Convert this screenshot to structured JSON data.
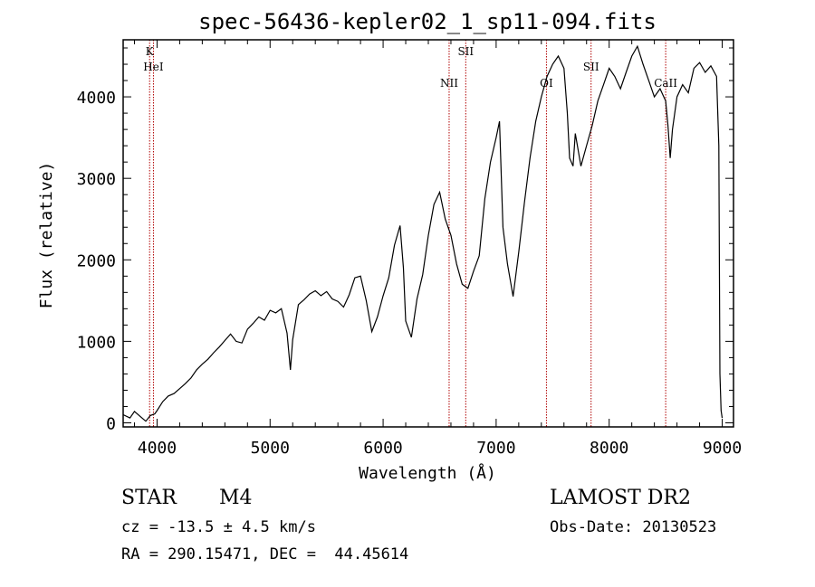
{
  "chart_data": {
    "type": "line",
    "title": "spec-56436-kepler02_1_sp11-094.fits",
    "xlabel": "Wavelength (Å)",
    "ylabel": "Flux (relative)",
    "xlim": [
      3700,
      9100
    ],
    "ylim": [
      -50,
      4700
    ],
    "xticks": [
      4000,
      5000,
      6000,
      7000,
      8000,
      9000
    ],
    "yticks": [
      0,
      1000,
      2000,
      3000,
      4000
    ],
    "grid": false,
    "series": [
      {
        "x": [
          3700,
          3760,
          3800,
          3850,
          3900,
          3940,
          3980,
          4000,
          4050,
          4100,
          4150,
          4200,
          4250,
          4300,
          4350,
          4400,
          4450,
          4500,
          4550,
          4600,
          4650,
          4700,
          4750,
          4800,
          4850,
          4900,
          4950,
          5000,
          5050,
          5100,
          5150,
          5180,
          5200,
          5250,
          5300,
          5350,
          5400,
          5450,
          5500,
          5550,
          5600,
          5650,
          5700,
          5750,
          5800,
          5850,
          5900,
          5950,
          6000,
          6050,
          6100,
          6150,
          6180,
          6200,
          6250,
          6300,
          6350,
          6400,
          6450,
          6500,
          6550,
          6600,
          6650,
          6700,
          6750,
          6800,
          6850,
          6900,
          6950,
          7000,
          7030,
          7060,
          7100,
          7150,
          7200,
          7250,
          7300,
          7350,
          7400,
          7450,
          7500,
          7550,
          7600,
          7630,
          7650,
          7680,
          7700,
          7750,
          7800,
          7850,
          7900,
          7950,
          8000,
          8050,
          8100,
          8150,
          8200,
          8250,
          8300,
          8350,
          8400,
          8450,
          8500,
          8520,
          8540,
          8560,
          8600,
          8650,
          8700,
          8750,
          8800,
          8850,
          8900,
          8950,
          8970,
          8980,
          8990,
          9000
        ],
        "y": [
          100,
          60,
          140,
          80,
          20,
          90,
          110,
          150,
          260,
          330,
          360,
          420,
          480,
          550,
          650,
          720,
          780,
          860,
          930,
          1010,
          1090,
          1000,
          980,
          1150,
          1220,
          1300,
          1260,
          1380,
          1350,
          1400,
          1100,
          650,
          1020,
          1450,
          1510,
          1580,
          1620,
          1560,
          1610,
          1520,
          1490,
          1420,
          1570,
          1780,
          1800,
          1500,
          1120,
          1300,
          1560,
          1780,
          2180,
          2420,
          1900,
          1250,
          1050,
          1520,
          1820,
          2300,
          2680,
          2830,
          2500,
          2300,
          1950,
          1700,
          1650,
          1860,
          2050,
          2750,
          3200,
          3500,
          3700,
          2400,
          1950,
          1550,
          2100,
          2700,
          3250,
          3700,
          4000,
          4250,
          4400,
          4500,
          4350,
          3800,
          3250,
          3150,
          3550,
          3150,
          3400,
          3650,
          3950,
          4150,
          4350,
          4250,
          4100,
          4300,
          4500,
          4620,
          4400,
          4200,
          4000,
          4100,
          3950,
          3650,
          3250,
          3600,
          4000,
          4150,
          4050,
          4350,
          4420,
          4300,
          4380,
          4250,
          3400,
          600,
          150,
          60
        ]
      }
    ],
    "lines": [
      {
        "label": "K",
        "x": 3934
      },
      {
        "label": "HeI",
        "x": 3968
      },
      {
        "label": "NII",
        "x": 6584
      },
      {
        "label": "SII",
        "x": 6731
      },
      {
        "label": "OI",
        "x": 7445
      },
      {
        "label": "SII",
        "x": 7840
      },
      {
        "label": "CaII",
        "x": 8500
      }
    ]
  },
  "footer": {
    "star_type": "STAR",
    "star_class": "M4",
    "cz_label": "cz = -13.5 ± 4.5 km/s",
    "coords_label": "RA = 290.15471, DEC =  44.45614",
    "survey": "LAMOST DR2",
    "obs_date": "Obs-Date: 20130523"
  }
}
